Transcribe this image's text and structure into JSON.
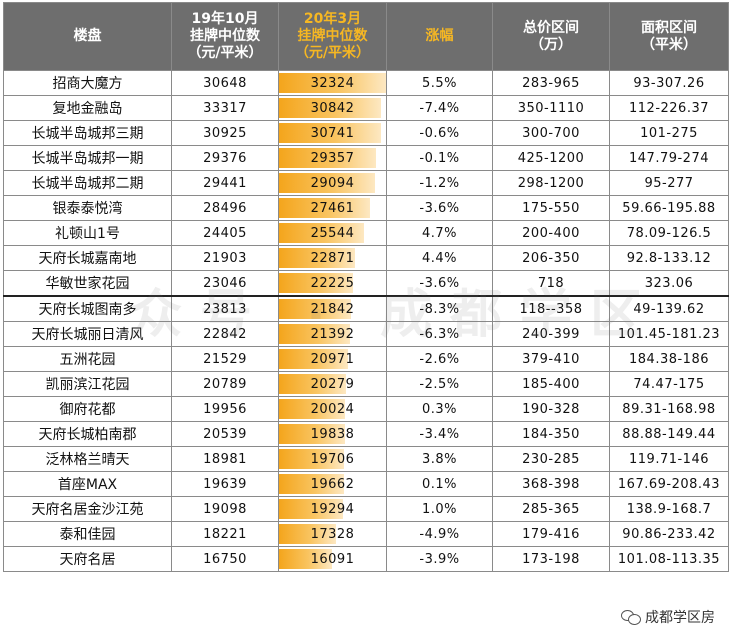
{
  "table": {
    "headers": {
      "name": "楼盘",
      "oct19": [
        "19年10月",
        "挂牌中位数",
        "（元/平米）"
      ],
      "mar20": [
        "20年3月",
        "挂牌中位数",
        "（元/平米）"
      ],
      "change": "涨幅",
      "total": [
        "总价区间",
        "（万）"
      ],
      "area": [
        "面积区间",
        "（平米）"
      ]
    },
    "accent_color": "#f6b722",
    "rows": [
      {
        "name": "招商大魔方",
        "oct19": "30648",
        "mar20": "32324",
        "mar20_value": 32324,
        "change": "5.5%",
        "total": "283-965",
        "area": "93-307.26"
      },
      {
        "name": "复地金融岛",
        "oct19": "33317",
        "mar20": "30842",
        "mar20_value": 30842,
        "change": "-7.4%",
        "total": "350-1110",
        "area": "112-226.37"
      },
      {
        "name": "长城半岛城邦三期",
        "oct19": "30925",
        "mar20": "30741",
        "mar20_value": 30741,
        "change": "-0.6%",
        "total": "300-700",
        "area": "101-275"
      },
      {
        "name": "长城半岛城邦一期",
        "oct19": "29376",
        "mar20": "29357",
        "mar20_value": 29357,
        "change": "-0.1%",
        "total": "425-1200",
        "area": "147.79-274"
      },
      {
        "name": "长城半岛城邦二期",
        "oct19": "29441",
        "mar20": "29094",
        "mar20_value": 29094,
        "change": "-1.2%",
        "total": "298-1200",
        "area": "95-277"
      },
      {
        "name": "银泰泰悦湾",
        "oct19": "28496",
        "mar20": "27461",
        "mar20_value": 27461,
        "change": "-3.6%",
        "total": "175-550",
        "area": "59.66-195.88"
      },
      {
        "name": "礼顿山1号",
        "oct19": "24405",
        "mar20": "25544",
        "mar20_value": 25544,
        "change": "4.7%",
        "total": "200-400",
        "area": "78.09-126.5"
      },
      {
        "name": "天府长城嘉南地",
        "oct19": "21903",
        "mar20": "22871",
        "mar20_value": 22871,
        "change": "4.4%",
        "total": "206-350",
        "area": "92.8-133.12"
      },
      {
        "name": "华敏世家花园",
        "oct19": "23046",
        "mar20": "22225",
        "mar20_value": 22225,
        "change": "-3.6%",
        "total": "718",
        "area": "323.06"
      },
      {
        "name": "天府长城图南多",
        "oct19": "23813",
        "mar20": "21842",
        "mar20_value": 21842,
        "change": "-8.3%",
        "total": "118--358",
        "area": "49-139.62"
      },
      {
        "name": "天府长城丽日清风",
        "oct19": "22842",
        "mar20": "21392",
        "mar20_value": 21392,
        "change": "-6.3%",
        "total": "240-399",
        "area": "101.45-181.23"
      },
      {
        "name": "五洲花园",
        "oct19": "21529",
        "mar20": "20971",
        "mar20_value": 20971,
        "change": "-2.6%",
        "total": "379-410",
        "area": "184.38-186"
      },
      {
        "name": "凯丽滨江花园",
        "oct19": "20789",
        "mar20": "20279",
        "mar20_value": 20279,
        "change": "-2.5%",
        "total": "185-400",
        "area": "74.47-175"
      },
      {
        "name": "御府花都",
        "oct19": "19956",
        "mar20": "20024",
        "mar20_value": 20024,
        "change": "0.3%",
        "total": "190-328",
        "area": "89.31-168.98"
      },
      {
        "name": "天府长城柏南郡",
        "oct19": "20539",
        "mar20": "19838",
        "mar20_value": 19838,
        "change": "-3.4%",
        "total": "184-350",
        "area": "88.88-149.44"
      },
      {
        "name": "泛林格兰晴天",
        "oct19": "18981",
        "mar20": "19706",
        "mar20_value": 19706,
        "change": "3.8%",
        "total": "230-285",
        "area": "119.71-146"
      },
      {
        "name": "首座MAX",
        "oct19": "19639",
        "mar20": "19662",
        "mar20_value": 19662,
        "change": "0.1%",
        "total": "368-398",
        "area": "167.69-208.43"
      },
      {
        "name": "天府名居金沙江苑",
        "oct19": "19098",
        "mar20": "19294",
        "mar20_value": 19294,
        "change": "1.0%",
        "total": "285-365",
        "area": "138.9-168.7"
      },
      {
        "name": "泰和佳园",
        "oct19": "18221",
        "mar20": "17328",
        "mar20_value": 17328,
        "change": "-4.9%",
        "total": "179-416",
        "area": "90.86-233.42"
      },
      {
        "name": "天府名居",
        "oct19": "16750",
        "mar20": "16091",
        "mar20_value": 16091,
        "change": "-3.9%",
        "total": "173-198",
        "area": "101.08-113.35"
      }
    ]
  },
  "watermark": "众号 · 成都学区",
  "brand": {
    "icon": "wechat-icon",
    "text": "成都学区房"
  }
}
